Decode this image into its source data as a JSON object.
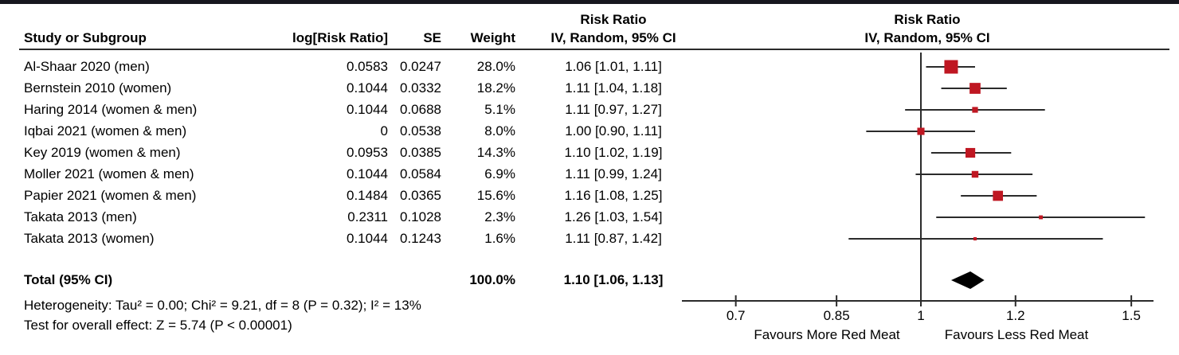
{
  "header": {
    "effect_col_title": "Risk Ratio",
    "plot_col_title": "Risk Ratio",
    "col_study": "Study or Subgroup",
    "col_log_rr": "log[Risk Ratio]",
    "col_se": "SE",
    "col_weight": "Weight",
    "col_ci_method": "IV, Random, 95% CI",
    "plot_ci_method": "IV, Random, 95% CI"
  },
  "footnotes": {
    "heterogeneity": "Heterogeneity: Tau² = 0.00; Chi² = 9.21, df = 8 (P = 0.32); I² = 13%",
    "overall_effect": "Test for overall effect: Z = 5.74 (P < 0.00001)"
  },
  "colors": {
    "square": "#bf1722",
    "diamond": "#000000",
    "line": "#2b2b2b",
    "text": "#000000",
    "topbar": "#16161e"
  },
  "chart_data": {
    "type": "forest",
    "effect_measure": "Risk Ratio",
    "model": "IV, Random, 95% CI",
    "x_scale": "log",
    "studies": [
      {
        "name": "Al-Shaar 2020 (men)",
        "log_rr": "0.0583",
        "se": "0.0247",
        "weight": "28.0%",
        "ci_text": "1.06 [1.01, 1.11]",
        "rr": 1.06,
        "lo": 1.01,
        "hi": 1.11,
        "weight_val": 28.0
      },
      {
        "name": "Bernstein 2010 (women)",
        "log_rr": "0.1044",
        "se": "0.0332",
        "weight": "18.2%",
        "ci_text": "1.11 [1.04, 1.18]",
        "rr": 1.11,
        "lo": 1.04,
        "hi": 1.18,
        "weight_val": 18.2
      },
      {
        "name": "Haring 2014 (women & men)",
        "log_rr": "0.1044",
        "se": "0.0688",
        "weight": "5.1%",
        "ci_text": "1.11 [0.97, 1.27]",
        "rr": 1.11,
        "lo": 0.97,
        "hi": 1.27,
        "weight_val": 5.1
      },
      {
        "name": "Iqbai 2021 (women & men)",
        "log_rr": "0",
        "se": "0.0538",
        "weight": "8.0%",
        "ci_text": "1.00 [0.90, 1.11]",
        "rr": 1.0,
        "lo": 0.9,
        "hi": 1.11,
        "weight_val": 8.0
      },
      {
        "name": "Key 2019 (women & men)",
        "log_rr": "0.0953",
        "se": "0.0385",
        "weight": "14.3%",
        "ci_text": "1.10 [1.02, 1.19]",
        "rr": 1.1,
        "lo": 1.02,
        "hi": 1.19,
        "weight_val": 14.3
      },
      {
        "name": "Moller 2021 (women & men)",
        "log_rr": "0.1044",
        "se": "0.0584",
        "weight": "6.9%",
        "ci_text": "1.11 [0.99, 1.24]",
        "rr": 1.11,
        "lo": 0.99,
        "hi": 1.24,
        "weight_val": 6.9
      },
      {
        "name": "Papier 2021 (women & men)",
        "log_rr": "0.1484",
        "se": "0.0365",
        "weight": "15.6%",
        "ci_text": "1.16 [1.08, 1.25]",
        "rr": 1.16,
        "lo": 1.08,
        "hi": 1.25,
        "weight_val": 15.6
      },
      {
        "name": "Takata 2013 (men)",
        "log_rr": "0.2311",
        "se": "0.1028",
        "weight": "2.3%",
        "ci_text": "1.26 [1.03, 1.54]",
        "rr": 1.26,
        "lo": 1.03,
        "hi": 1.54,
        "weight_val": 2.3
      },
      {
        "name": "Takata 2013 (women)",
        "log_rr": "0.1044",
        "se": "0.1243",
        "weight": "1.6%",
        "ci_text": "1.11 [0.87, 1.42]",
        "rr": 1.11,
        "lo": 0.87,
        "hi": 1.42,
        "weight_val": 1.6
      }
    ],
    "total": {
      "label": "Total (95% CI)",
      "weight": "100.0%",
      "ci_text": "1.10 [1.06, 1.13]",
      "rr": 1.1,
      "lo": 1.06,
      "hi": 1.13
    },
    "axis": {
      "ticks": [
        0.7,
        0.85,
        1,
        1.2,
        1.5
      ],
      "tick_labels": [
        "0.7",
        "0.85",
        "1",
        "1.2",
        "1.5"
      ],
      "favours_left": "Favours More Red Meat",
      "favours_right": "Favours Less Red Meat",
      "null_value": 1
    }
  }
}
